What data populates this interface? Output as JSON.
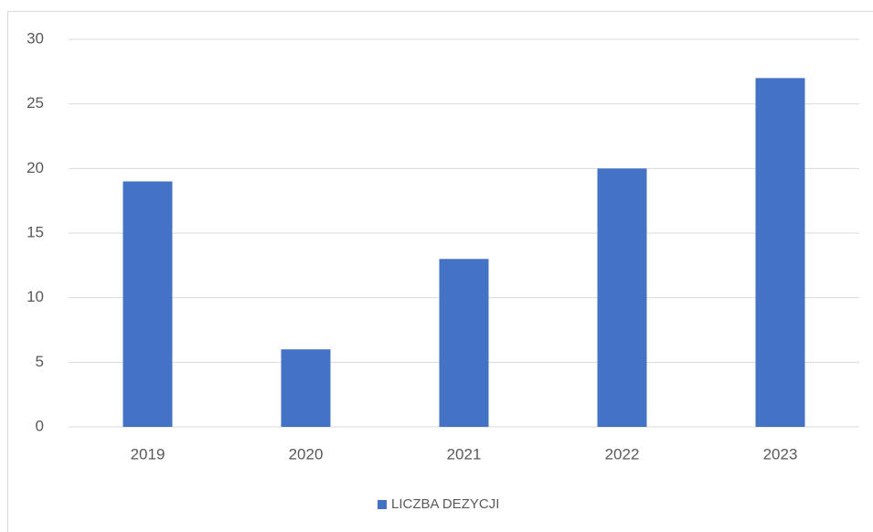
{
  "chart_data": {
    "type": "bar",
    "categories": [
      "2019",
      "2020",
      "2021",
      "2022",
      "2023"
    ],
    "series": [
      {
        "name": "LICZBA DEZYCJI",
        "color": "#4472c4",
        "values": [
          19,
          6,
          13,
          20,
          27
        ]
      }
    ],
    "ylim": [
      0,
      30
    ],
    "yticks": [
      0,
      5,
      10,
      15,
      20,
      25,
      30
    ],
    "grid": true,
    "legend": "bottom"
  }
}
